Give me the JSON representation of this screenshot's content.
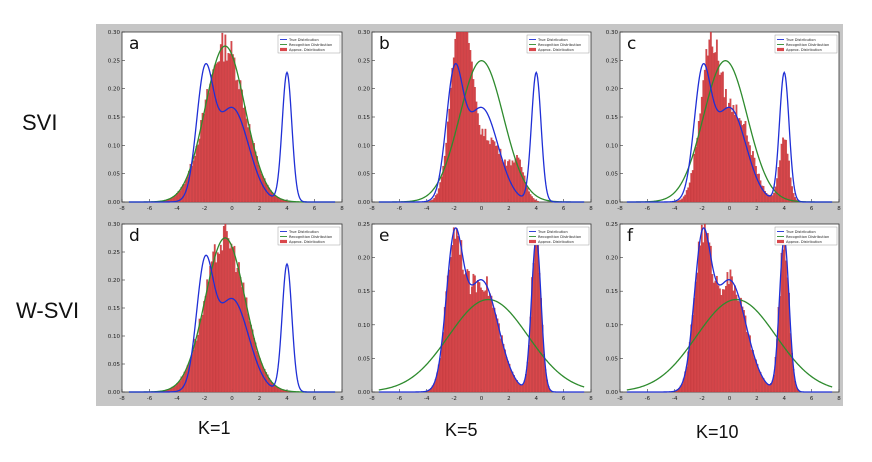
{
  "row_labels": [
    "SVI",
    "W-SVI"
  ],
  "col_labels": [
    "K=1",
    "K=5",
    "K=10"
  ],
  "legend_labels": [
    "True Distribution",
    "Recognition Distribution",
    "Approx. Distribution"
  ],
  "colors": {
    "true": "#1f2fd6",
    "recognition": "#2e8b2e",
    "hist": "#d9474b",
    "hist_edge": "#b03236",
    "background": "#c6c6c6"
  },
  "chart_data": [
    {
      "type": "area",
      "panel": "a",
      "approx": "recognition",
      "recognition": {
        "mean": -0.5,
        "sd": 1.45
      },
      "x_ticks": [
        -8,
        -6,
        -4,
        -2,
        0,
        2,
        4,
        6,
        8
      ],
      "y_ticks": [
        0.0,
        0.05,
        0.1,
        0.15,
        0.2,
        0.25,
        0.3
      ],
      "xlim": [
        -8,
        8
      ],
      "ylim": [
        0,
        0.3
      ]
    },
    {
      "type": "area",
      "panel": "b",
      "approx": "b",
      "recognition": {
        "mean": 0.0,
        "sd": 1.6
      },
      "x_ticks": [
        -8,
        -6,
        -4,
        -2,
        0,
        2,
        4,
        6,
        8
      ],
      "y_ticks": [
        0.0,
        0.05,
        0.1,
        0.15,
        0.2,
        0.25,
        0.3
      ],
      "xlim": [
        -8,
        8
      ],
      "ylim": [
        0,
        0.3
      ]
    },
    {
      "type": "area",
      "panel": "c",
      "approx": "c",
      "recognition": {
        "mean": -0.3,
        "sd": 1.6
      },
      "x_ticks": [
        -8,
        -6,
        -4,
        -2,
        0,
        2,
        4,
        6,
        8
      ],
      "y_ticks": [
        0.0,
        0.05,
        0.1,
        0.15,
        0.2,
        0.25,
        0.3
      ],
      "xlim": [
        -8,
        8
      ],
      "ylim": [
        0,
        0.3
      ]
    },
    {
      "type": "area",
      "panel": "d",
      "approx": "recognition",
      "recognition": {
        "mean": -0.5,
        "sd": 1.45
      },
      "x_ticks": [
        -8,
        -6,
        -4,
        -2,
        0,
        2,
        4,
        6,
        8
      ],
      "y_ticks": [
        0.0,
        0.05,
        0.1,
        0.15,
        0.2,
        0.25,
        0.3
      ],
      "xlim": [
        -8,
        8
      ],
      "ylim": [
        0,
        0.3
      ]
    },
    {
      "type": "area",
      "panel": "e",
      "approx": "true",
      "recognition": {
        "mean": 0.5,
        "sd": 2.9
      },
      "x_ticks": [
        -8,
        -6,
        -4,
        -2,
        0,
        2,
        4,
        6,
        8
      ],
      "y_ticks": [
        0.0,
        0.05,
        0.1,
        0.15,
        0.2,
        0.25
      ],
      "xlim": [
        -8,
        8
      ],
      "ylim": [
        0,
        0.25
      ]
    },
    {
      "type": "area",
      "panel": "f",
      "approx": "true",
      "recognition": {
        "mean": 0.5,
        "sd": 2.9
      },
      "x_ticks": [
        -8,
        -6,
        -4,
        -2,
        0,
        2,
        4,
        6,
        8
      ],
      "y_ticks": [
        0.0,
        0.05,
        0.1,
        0.15,
        0.2,
        0.25
      ],
      "xlim": [
        -8,
        8
      ],
      "ylim": [
        0,
        0.25
      ]
    }
  ],
  "true_distribution": {
    "components": [
      {
        "weight": 0.3,
        "mean": -2.0,
        "sd": 0.6
      },
      {
        "weight": 0.5,
        "mean": 0.0,
        "sd": 1.2
      },
      {
        "weight": 0.2,
        "mean": 4.0,
        "sd": 0.35
      }
    ]
  }
}
